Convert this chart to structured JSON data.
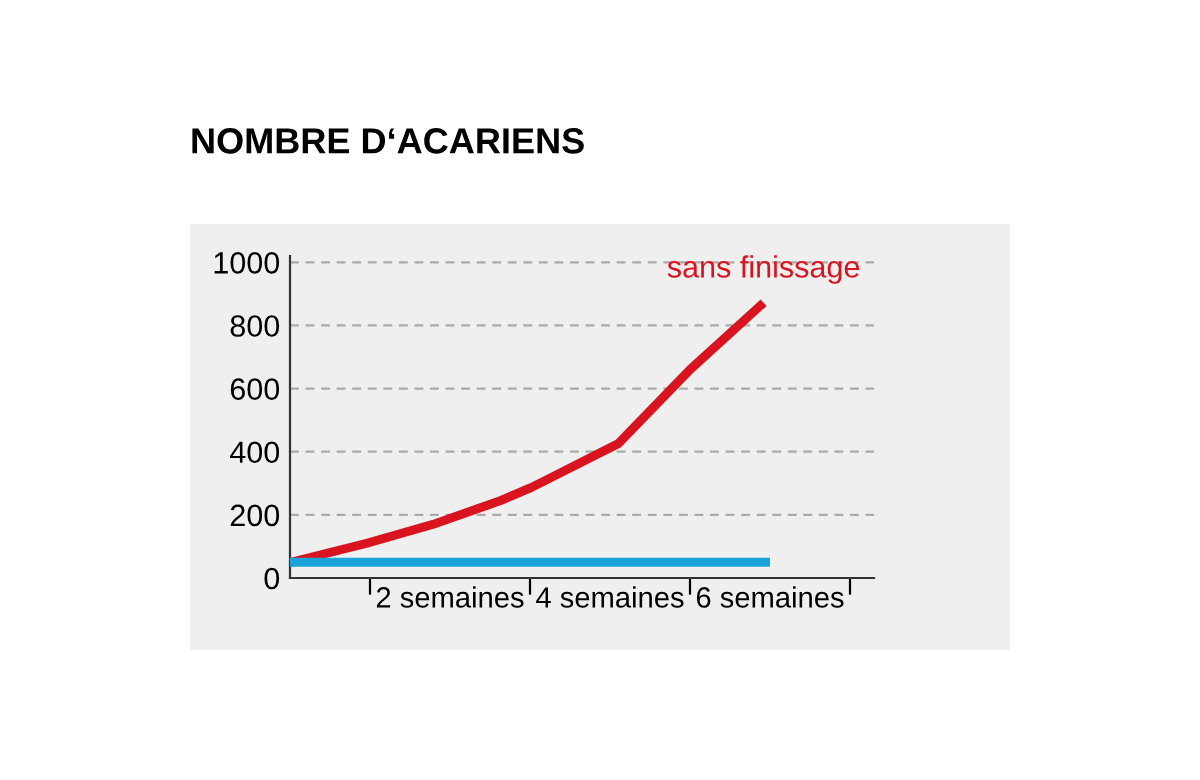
{
  "chart_data": {
    "type": "line",
    "title": "NOMBRE D‘ACARIENS",
    "series": [
      {
        "name": "sans finissage",
        "color": "#d9141e",
        "x": [
          0,
          0.96,
          1.79,
          2.63,
          3.02,
          4.1,
          5.0,
          5.92
        ],
        "values": [
          49,
          110,
          170,
          245,
          287,
          425,
          660,
          872
        ]
      },
      {
        "color": "#1aa3d9",
        "x": [
          0,
          6
        ],
        "values": [
          50,
          50
        ]
      }
    ],
    "xlim": [
      0,
      7.3
    ],
    "xticks": [
      {
        "value": 1,
        "label": null
      },
      {
        "value": 2,
        "label": "2 semaines"
      },
      {
        "value": 3,
        "label": null
      },
      {
        "value": 4,
        "label": "4 semaines"
      },
      {
        "value": 5,
        "label": null
      },
      {
        "value": 6,
        "label": "6 semaines"
      },
      {
        "value": 7,
        "label": null
      }
    ],
    "ylim": [
      0,
      1020
    ],
    "yticks": [
      0,
      200,
      400,
      600,
      800,
      1000
    ],
    "grid": "y",
    "legend": false,
    "marker": "none",
    "line_style": "solid"
  }
}
